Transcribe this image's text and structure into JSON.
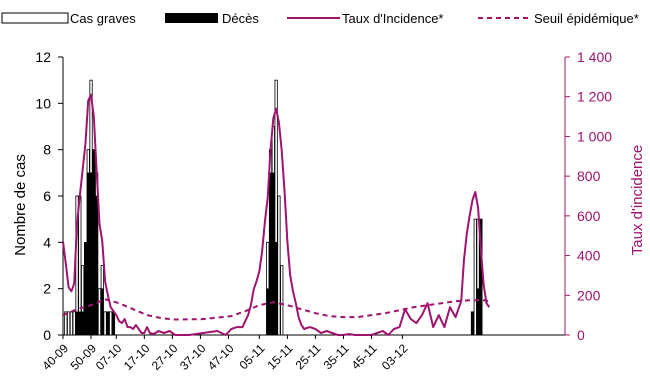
{
  "chart_data": {
    "type": "bar",
    "title": "",
    "legend_placement": "top",
    "legend": {
      "cas_graves": "Cas graves",
      "deces": "Décès",
      "taux": "Taux d'Incidence*",
      "seuil": "Seuil épidémique*"
    },
    "ylabel_left": "Nombre de cas",
    "ylabel_right": "Taux d'incidence",
    "yticks_left": [
      "0",
      "2",
      "4",
      "6",
      "8",
      "10",
      "12"
    ],
    "yticks_right": [
      "0",
      "200",
      "400",
      "600",
      "800",
      "1 000",
      "1 200",
      "1 400"
    ],
    "ylim_left": [
      0,
      12
    ],
    "ylim_right": [
      0,
      1400
    ],
    "x_range": [
      0,
      179
    ],
    "xticks": [
      {
        "label": "40-09",
        "x": 0
      },
      {
        "label": "50-09",
        "x": 10
      },
      {
        "label": "07-10",
        "x": 19
      },
      {
        "label": "17-10",
        "x": 29
      },
      {
        "label": "27-10",
        "x": 39
      },
      {
        "label": "37-10",
        "x": 49
      },
      {
        "label": "47-10",
        "x": 59
      },
      {
        "label": "05-11",
        "x": 70
      },
      {
        "label": "15-11",
        "x": 80
      },
      {
        "label": "25-11",
        "x": 90
      },
      {
        "label": "35-11",
        "x": 100
      },
      {
        "label": "45-11",
        "x": 110
      },
      {
        "label": "03-12",
        "x": 121
      }
    ],
    "colors": {
      "cas_graves_fill": "#ffffff",
      "deces_fill": "#000000",
      "taux_line": "#a0146e",
      "seuil_line": "#a0146e",
      "right_axis": "#a0146e"
    },
    "cas_graves": [
      [
        1,
        1
      ],
      [
        2,
        1
      ],
      [
        3,
        1
      ],
      [
        4,
        1
      ],
      [
        5,
        6
      ],
      [
        6,
        6
      ],
      [
        7,
        3
      ],
      [
        8,
        3
      ],
      [
        9,
        8
      ],
      [
        10,
        11
      ],
      [
        11,
        8
      ],
      [
        12,
        7
      ],
      [
        13,
        2
      ],
      [
        14,
        3
      ],
      [
        15,
        1
      ],
      [
        16,
        1
      ],
      [
        17,
        1
      ],
      [
        18,
        1
      ],
      [
        73,
        4
      ],
      [
        74,
        8
      ],
      [
        75,
        9
      ],
      [
        76,
        11
      ],
      [
        77,
        6
      ],
      [
        78,
        3
      ],
      [
        146,
        1
      ],
      [
        147,
        5
      ],
      [
        148,
        5
      ],
      [
        149,
        5
      ]
    ],
    "deces": [
      [
        5,
        1
      ],
      [
        6,
        1
      ],
      [
        7,
        1
      ],
      [
        8,
        4
      ],
      [
        9,
        7
      ],
      [
        10,
        7
      ],
      [
        11,
        8
      ],
      [
        12,
        6
      ],
      [
        14,
        2
      ],
      [
        16,
        1
      ],
      [
        18,
        1
      ],
      [
        73,
        2
      ],
      [
        74,
        7
      ],
      [
        75,
        7
      ],
      [
        76,
        4
      ],
      [
        146,
        1
      ],
      [
        148,
        2
      ],
      [
        149,
        5
      ]
    ],
    "taux": [
      [
        0,
        470
      ],
      [
        1,
        360
      ],
      [
        2,
        240
      ],
      [
        3,
        220
      ],
      [
        4,
        260
      ],
      [
        5,
        560
      ],
      [
        6,
        700
      ],
      [
        7,
        830
      ],
      [
        8,
        960
      ],
      [
        9,
        1180
      ],
      [
        10,
        1210
      ],
      [
        11,
        1100
      ],
      [
        12,
        820
      ],
      [
        13,
        560
      ],
      [
        14,
        470
      ],
      [
        15,
        270
      ],
      [
        16,
        200
      ],
      [
        17,
        140
      ],
      [
        18,
        120
      ],
      [
        19,
        100
      ],
      [
        20,
        70
      ],
      [
        21,
        60
      ],
      [
        22,
        80
      ],
      [
        23,
        40
      ],
      [
        24,
        40
      ],
      [
        25,
        30
      ],
      [
        26,
        50
      ],
      [
        27,
        30
      ],
      [
        28,
        10
      ],
      [
        29,
        10
      ],
      [
        30,
        40
      ],
      [
        31,
        10
      ],
      [
        32,
        5
      ],
      [
        33,
        10
      ],
      [
        34,
        20
      ],
      [
        36,
        10
      ],
      [
        38,
        20
      ],
      [
        40,
        0
      ],
      [
        45,
        0
      ],
      [
        50,
        10
      ],
      [
        55,
        20
      ],
      [
        58,
        0
      ],
      [
        60,
        30
      ],
      [
        62,
        40
      ],
      [
        64,
        40
      ],
      [
        66,
        100
      ],
      [
        67,
        150
      ],
      [
        68,
        230
      ],
      [
        69,
        270
      ],
      [
        70,
        320
      ],
      [
        71,
        420
      ],
      [
        72,
        570
      ],
      [
        73,
        690
      ],
      [
        74,
        930
      ],
      [
        75,
        1090
      ],
      [
        76,
        1140
      ],
      [
        77,
        1070
      ],
      [
        78,
        930
      ],
      [
        79,
        720
      ],
      [
        80,
        470
      ],
      [
        81,
        300
      ],
      [
        82,
        220
      ],
      [
        83,
        160
      ],
      [
        84,
        90
      ],
      [
        85,
        50
      ],
      [
        86,
        30
      ],
      [
        88,
        40
      ],
      [
        90,
        30
      ],
      [
        92,
        10
      ],
      [
        94,
        20
      ],
      [
        96,
        10
      ],
      [
        98,
        0
      ],
      [
        100,
        0
      ],
      [
        102,
        5
      ],
      [
        104,
        0
      ],
      [
        106,
        0
      ],
      [
        108,
        0
      ],
      [
        110,
        0
      ],
      [
        112,
        10
      ],
      [
        114,
        20
      ],
      [
        116,
        0
      ],
      [
        118,
        30
      ],
      [
        120,
        40
      ],
      [
        122,
        130
      ],
      [
        124,
        80
      ],
      [
        126,
        60
      ],
      [
        128,
        100
      ],
      [
        130,
        160
      ],
      [
        131,
        100
      ],
      [
        132,
        40
      ],
      [
        134,
        100
      ],
      [
        136,
        40
      ],
      [
        138,
        140
      ],
      [
        140,
        90
      ],
      [
        142,
        170
      ],
      [
        143,
        380
      ],
      [
        144,
        510
      ],
      [
        145,
        600
      ],
      [
        146,
        680
      ],
      [
        147,
        720
      ],
      [
        148,
        640
      ],
      [
        149,
        430
      ],
      [
        150,
        250
      ],
      [
        151,
        160
      ],
      [
        152,
        140
      ]
    ],
    "seuil": [
      [
        0,
        100
      ],
      [
        5,
        130
      ],
      [
        10,
        150
      ],
      [
        15,
        180
      ],
      [
        20,
        160
      ],
      [
        25,
        130
      ],
      [
        30,
        100
      ],
      [
        35,
        85
      ],
      [
        40,
        78
      ],
      [
        50,
        80
      ],
      [
        60,
        95
      ],
      [
        65,
        120
      ],
      [
        70,
        150
      ],
      [
        75,
        165
      ],
      [
        80,
        150
      ],
      [
        85,
        130
      ],
      [
        90,
        110
      ],
      [
        95,
        95
      ],
      [
        100,
        90
      ],
      [
        105,
        90
      ],
      [
        110,
        100
      ],
      [
        115,
        110
      ],
      [
        120,
        125
      ],
      [
        125,
        140
      ],
      [
        130,
        150
      ],
      [
        135,
        160
      ],
      [
        140,
        170
      ],
      [
        145,
        175
      ],
      [
        150,
        175
      ],
      [
        152,
        170
      ]
    ]
  }
}
